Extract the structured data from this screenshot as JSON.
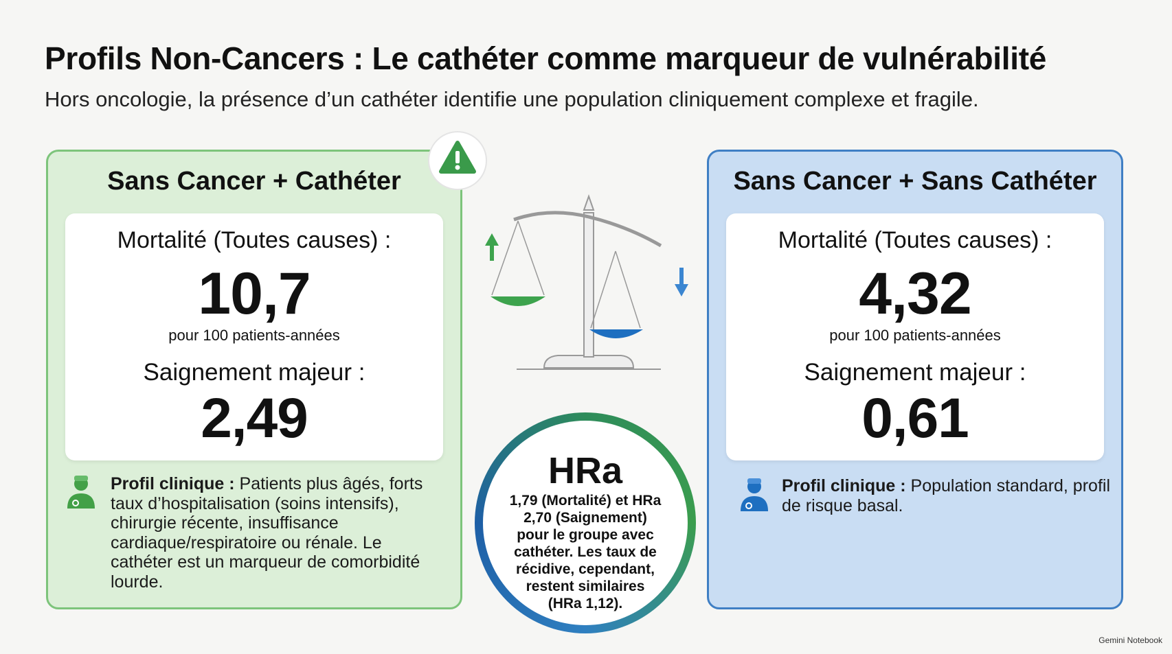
{
  "header": {
    "title": "Profils Non-Cancers : Le cathéter comme marqueur de vulnérabilité",
    "subtitle": "Hors oncologie, la présence d’un cathéter identifie une population cliniquement complexe et fragile."
  },
  "left_panel": {
    "title": "Sans Cancer + Cathéter",
    "mortality_label": "Mortalité (Toutes causes) :",
    "mortality_value": "10,7",
    "mortality_unit": "pour 100 patients-années",
    "bleeding_label": "Saignement majeur :",
    "bleeding_value": "2,49",
    "profile_label": "Profil clinique :",
    "profile_text": "Patients plus âgés, forts taux d’hospitalisation (soins intensifs), chirurgie récente, insuffisance cardiaque/respiratoire ou rénale. Le cathéter est un marqueur de comorbidité lourde."
  },
  "right_panel": {
    "title": "Sans Cancer + Sans Cathéter",
    "mortality_label": "Mortalité (Toutes causes) :",
    "mortality_value": "4,32",
    "mortality_unit": "pour 100 patients-années",
    "bleeding_label": "Saignement majeur :",
    "bleeding_value": "0,61",
    "profile_label": "Profil clinique :",
    "profile_text": "Population standard, profil de risque basal."
  },
  "center": {
    "title": "HRa",
    "text": "1,79 (Mortalité) et HRa 2,70 (Saignement) pour le groupe avec cathéter. Les taux de récidive, cependant, restent similaires (HRa 1,12)."
  },
  "footer": {
    "brand": "Gemini Notebook"
  }
}
